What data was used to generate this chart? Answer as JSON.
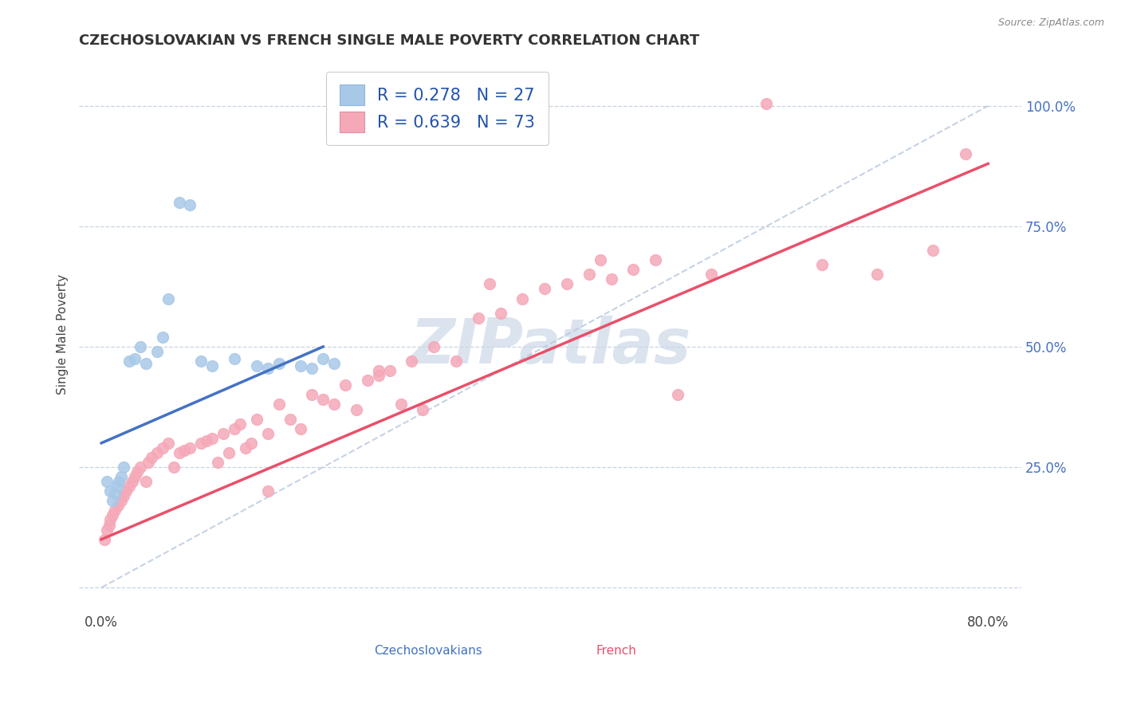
{
  "title": "CZECHOSLOVAKIAN VS FRENCH SINGLE MALE POVERTY CORRELATION CHART",
  "source": "Source: ZipAtlas.com",
  "xlim": [
    -2,
    83
  ],
  "ylim": [
    -5,
    110
  ],
  "czech_R": 0.278,
  "czech_N": 27,
  "french_R": 0.639,
  "french_N": 73,
  "czech_color": "#a8c8e8",
  "french_color": "#f5a8b8",
  "czech_line_color": "#4472c4",
  "french_line_color": "#e8506a",
  "diag_line_color": "#b8c8dc",
  "watermark_color": "#ccd8e8",
  "czech_x": [
    0.5,
    0.8,
    1.0,
    1.2,
    1.4,
    1.6,
    1.8,
    2.0,
    2.5,
    3.0,
    3.5,
    4.0,
    5.0,
    5.5,
    6.0,
    7.0,
    8.0,
    9.0,
    10.0,
    12.0,
    14.0,
    15.0,
    16.0,
    18.0,
    19.0,
    20.0,
    21.0
  ],
  "czech_y": [
    22.0,
    20.0,
    18.0,
    19.5,
    21.0,
    22.0,
    23.0,
    25.0,
    47.0,
    47.5,
    50.0,
    46.5,
    49.0,
    52.0,
    60.0,
    80.0,
    79.5,
    47.0,
    46.0,
    47.5,
    46.0,
    45.5,
    46.5,
    46.0,
    45.5,
    47.5,
    46.5
  ],
  "french_x": [
    0.3,
    0.5,
    0.7,
    0.8,
    1.0,
    1.2,
    1.5,
    1.8,
    2.0,
    2.2,
    2.5,
    2.8,
    3.0,
    3.2,
    3.5,
    4.0,
    4.2,
    4.5,
    5.0,
    5.5,
    6.0,
    6.5,
    7.0,
    7.5,
    8.0,
    9.0,
    9.5,
    10.0,
    10.5,
    11.0,
    11.5,
    12.0,
    12.5,
    13.0,
    13.5,
    14.0,
    15.0,
    16.0,
    17.0,
    18.0,
    19.0,
    20.0,
    21.0,
    22.0,
    23.0,
    24.0,
    25.0,
    26.0,
    27.0,
    28.0,
    29.0,
    30.0,
    32.0,
    34.0,
    36.0,
    38.0,
    40.0,
    42.0,
    44.0,
    46.0,
    48.0,
    50.0,
    55.0,
    60.0,
    65.0,
    70.0,
    75.0,
    78.0,
    45.0,
    25.0,
    35.0,
    52.0,
    15.0
  ],
  "french_y": [
    10.0,
    12.0,
    13.0,
    14.0,
    15.0,
    16.0,
    17.0,
    18.0,
    19.0,
    20.0,
    21.0,
    22.0,
    23.0,
    24.0,
    25.0,
    22.0,
    26.0,
    27.0,
    28.0,
    29.0,
    30.0,
    25.0,
    28.0,
    28.5,
    29.0,
    30.0,
    30.5,
    31.0,
    26.0,
    32.0,
    28.0,
    33.0,
    34.0,
    29.0,
    30.0,
    35.0,
    32.0,
    38.0,
    35.0,
    33.0,
    40.0,
    39.0,
    38.0,
    42.0,
    37.0,
    43.0,
    44.0,
    45.0,
    38.0,
    47.0,
    37.0,
    50.0,
    47.0,
    56.0,
    57.0,
    60.0,
    62.0,
    63.0,
    65.0,
    64.0,
    66.0,
    68.0,
    65.0,
    100.5,
    67.0,
    65.0,
    70.0,
    90.0,
    68.0,
    45.0,
    63.0,
    40.0,
    20.0
  ],
  "czech_line_x": [
    0,
    20
  ],
  "czech_line_y": [
    30,
    50
  ],
  "french_line_x": [
    0,
    80
  ],
  "french_line_y": [
    10,
    88
  ]
}
